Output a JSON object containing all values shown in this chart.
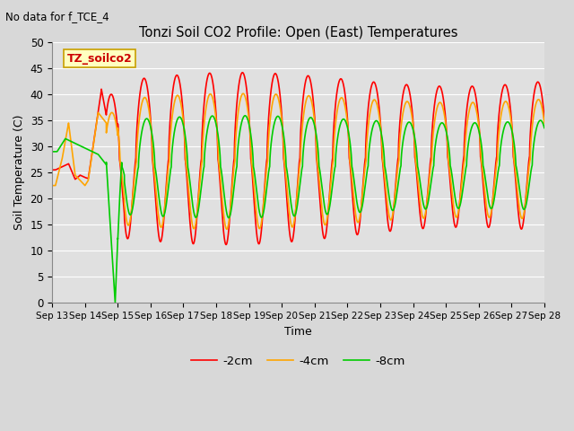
{
  "title": "Tonzi Soil CO2 Profile: Open (East) Temperatures",
  "subtitle": "No data for f_TCE_4",
  "xlabel": "Time",
  "ylabel": "Soil Temperature (C)",
  "annotation": "TZ_soilco2",
  "ylim": [
    0,
    50
  ],
  "xlim_days": [
    13,
    28
  ],
  "x_ticks": [
    13,
    14,
    15,
    16,
    17,
    18,
    19,
    20,
    21,
    22,
    23,
    24,
    25,
    26,
    27,
    28
  ],
  "x_tick_labels": [
    "Sep 13",
    "Sep 14",
    "Sep 15",
    "Sep 16",
    "Sep 17",
    "Sep 18",
    "Sep 19",
    "Sep 20",
    "Sep 21",
    "Sep 22",
    "Sep 23",
    "Sep 24",
    "Sep 25",
    "Sep 26",
    "Sep 27",
    "Sep 28"
  ],
  "legend_labels": [
    "-2cm",
    "-4cm",
    "-8cm"
  ],
  "colors": {
    "neg2cm": "#ff0000",
    "neg4cm": "#ffa500",
    "neg8cm": "#00cc00"
  },
  "bg_color": "#e0e0e0",
  "grid_color": "#ffffff",
  "fig_bg": "#d8d8d8",
  "line_width": 1.2,
  "yticks": [
    0,
    5,
    10,
    15,
    20,
    25,
    30,
    35,
    40,
    45,
    50
  ]
}
